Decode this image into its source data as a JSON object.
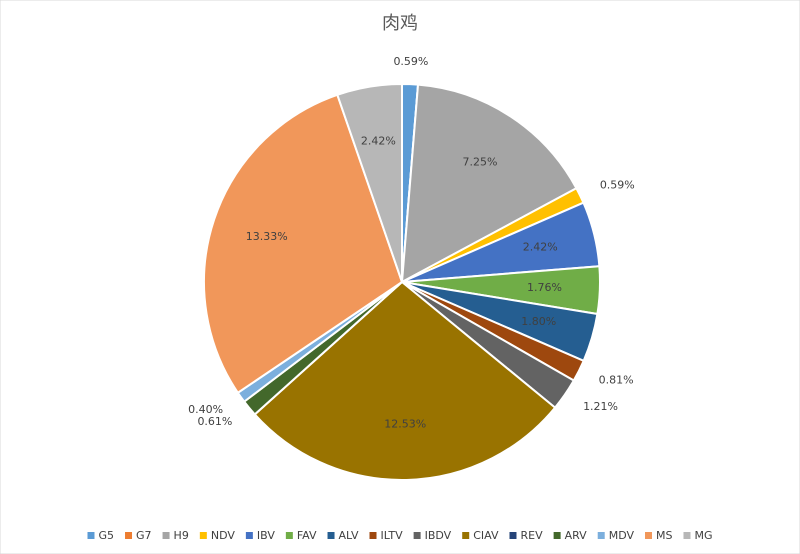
{
  "chart_data": {
    "type": "pie",
    "title": "肉鸡",
    "categories": [
      "G5",
      "G7",
      "H9",
      "NDV",
      "IBV",
      "FAV",
      "ALV",
      "ILTV",
      "IBDV",
      "CIAV",
      "REV",
      "ARV",
      "MDV",
      "MS",
      "MG"
    ],
    "values": [
      0.59,
      0,
      7.25,
      0.59,
      2.42,
      1.76,
      1.8,
      0.81,
      1.21,
      12.53,
      0,
      0.61,
      0.4,
      13.33,
      2.42
    ],
    "value_labels": [
      "0.59%",
      null,
      "7.25%",
      "0.59%",
      "2.42%",
      "1.76%",
      "1.80%",
      "0.81%",
      "1.21%",
      "12.53%",
      null,
      "0.61%",
      "0.40%",
      "13.33%",
      "2.42%"
    ],
    "colors": [
      "#5b9bd5",
      "#ed7d31",
      "#a5a5a5",
      "#ffc000",
      "#4472c4",
      "#70ad47",
      "#255e91",
      "#9e480e",
      "#636363",
      "#997300",
      "#264478",
      "#43682b",
      "#7cafdd",
      "#f1975a",
      "#b7b7b7"
    ],
    "legend": "bottom"
  }
}
